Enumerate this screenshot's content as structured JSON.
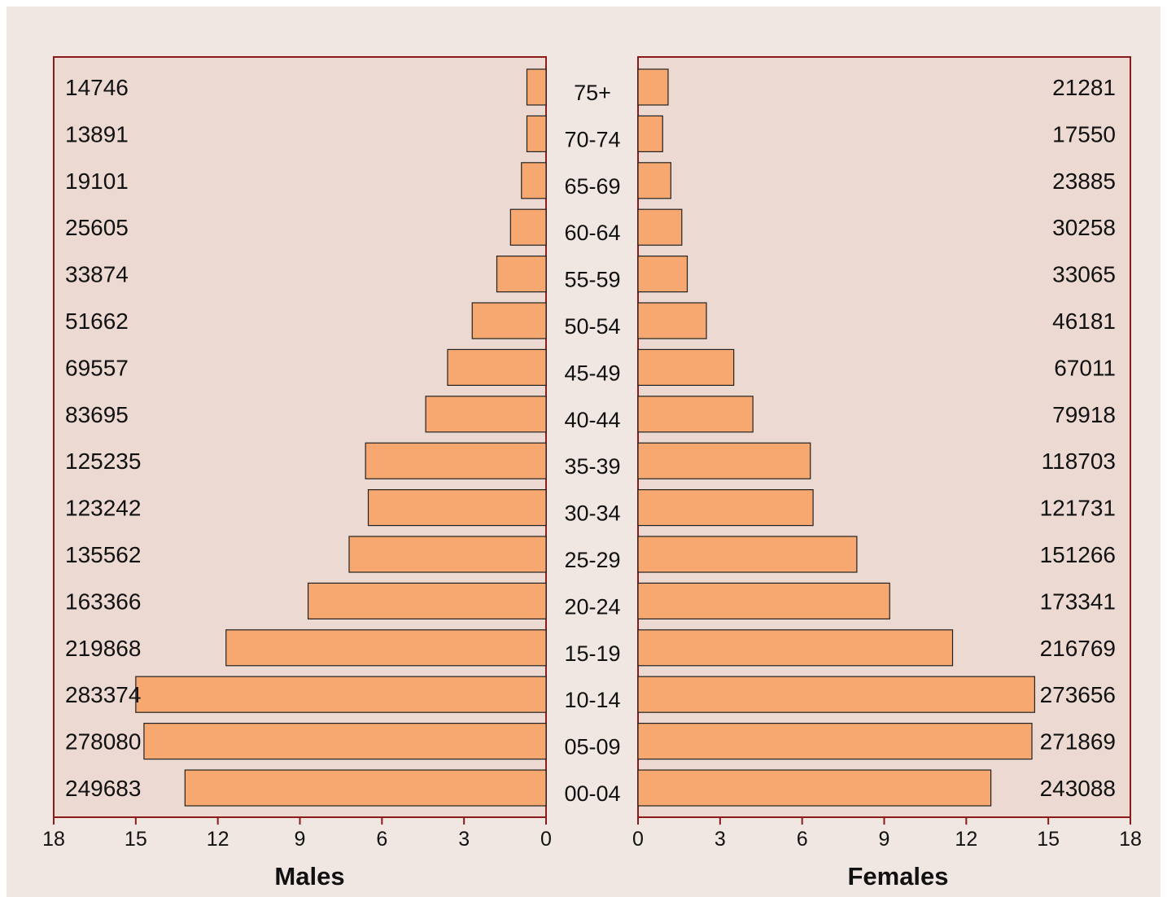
{
  "chart_data": {
    "type": "bar",
    "orientation": "horizontal",
    "subtype": "population-pyramid",
    "categories": [
      "75+",
      "70-74",
      "65-69",
      "60-64",
      "55-59",
      "50-54",
      "45-49",
      "40-44",
      "35-39",
      "30-34",
      "25-29",
      "20-24",
      "15-19",
      "10-14",
      "05-09",
      "00-04"
    ],
    "series": [
      {
        "name": "Males",
        "percent": [
          0.7,
          0.7,
          0.9,
          1.3,
          1.8,
          2.7,
          3.6,
          4.4,
          6.6,
          6.5,
          7.2,
          8.7,
          11.7,
          15.0,
          14.7,
          13.2
        ],
        "labels": [
          "14746",
          "13891",
          "19101",
          "25605",
          "33874",
          "51662",
          "69557",
          "83695",
          "125235",
          "123242",
          "135562",
          "163366",
          "219868",
          "283374",
          "278080",
          "249683"
        ]
      },
      {
        "name": "Females",
        "percent": [
          1.1,
          0.9,
          1.2,
          1.6,
          1.8,
          2.5,
          3.5,
          4.2,
          6.3,
          6.4,
          8.0,
          9.2,
          11.5,
          14.5,
          14.4,
          12.9
        ],
        "labels": [
          "21281",
          "17550",
          "23885",
          "30258",
          "33065",
          "46181",
          "67011",
          "79918",
          "118703",
          "121731",
          "151266",
          "173341",
          "216769",
          "273656",
          "271869",
          "243088"
        ]
      }
    ],
    "xlim": [
      0,
      18
    ],
    "male_ticks": [
      "18",
      "15",
      "12",
      "9",
      "6",
      "3",
      "0"
    ],
    "female_ticks": [
      "0",
      "3",
      "6",
      "9",
      "12",
      "15",
      "18"
    ],
    "male_xlabel": "Males",
    "female_xlabel": "Females",
    "bar_color": "#f6a870",
    "panel_color": "#ecdad2",
    "frame_color": "#8b1a1a"
  }
}
